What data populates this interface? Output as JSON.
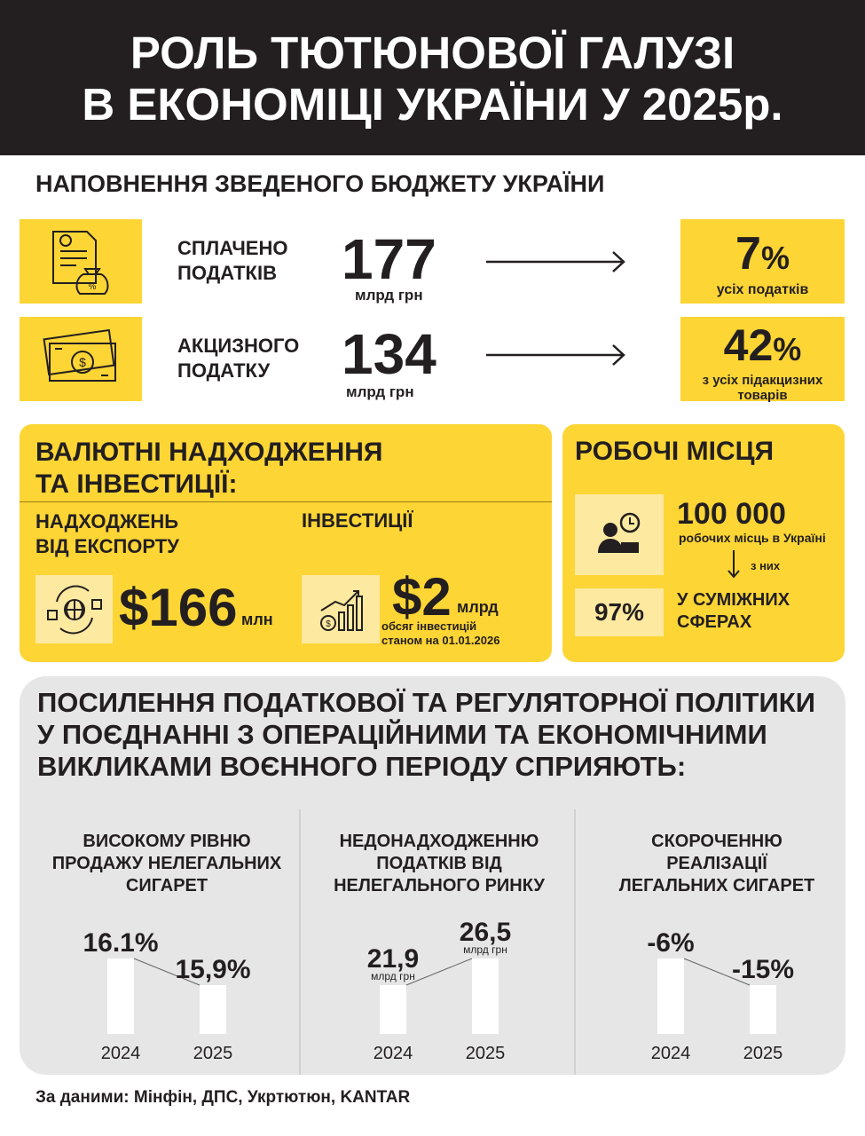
{
  "header": {
    "title_lines": [
      "РОЛЬ ТЮТЮНОВОЇ ГАЛУЗІ",
      "В ЕКОНОМІЦІ УКРАЇНИ У 2025р."
    ]
  },
  "budget": {
    "title": "НАПОВНЕННЯ ЗВЕДЕНОГО БЮДЖЕТУ УКРАЇНИ",
    "rows": [
      {
        "label_lines": [
          "СПЛАЧЕНО",
          "ПОДАТКІВ"
        ],
        "amount": "177",
        "unit": "млрд грн",
        "share": "7",
        "share_unit": "%",
        "share_note_lines": [
          "усіх податків"
        ]
      },
      {
        "label_lines": [
          "АКЦИЗНОГО",
          "ПОДАТКУ"
        ],
        "amount": "134",
        "unit": "млрд грн",
        "share": "42",
        "share_unit": "%",
        "share_note_lines": [
          "з усіх підакцизних",
          "товарів"
        ]
      }
    ]
  },
  "currency": {
    "title_lines": [
      "ВАЛЮТНІ НАДХОДЖЕННЯ",
      "ТА ІНВЕСТИЦІЇ:"
    ],
    "export": {
      "label_lines": [
        "НАДХОДЖЕНЬ",
        "ВІД ЕКСПОРТУ"
      ],
      "amount": "$166",
      "unit": "млн"
    },
    "investments": {
      "label": "ІНВЕСТИЦІЇ",
      "amount": "$2",
      "unit": "млрд",
      "note_lines": [
        "обсяг інвестицій",
        "станом на 01.01.2026"
      ]
    }
  },
  "jobs": {
    "title": "РОБОЧІ МІСЦЯ",
    "count": "100 000",
    "count_note": "робочих місць в Україні",
    "arrow_note": "з них",
    "share": "97%",
    "share_note_lines": [
      "У СУМІЖНИХ",
      "СФЕРАХ"
    ]
  },
  "policy": {
    "title_lines": [
      "ПОСИЛЕННЯ ПОДАТКОВОЇ ТА РЕГУЛЯТОРНОЇ ПОЛІТИКИ",
      "У ПОЄДНАННІ З ОПЕРАЦІЙНИМИ ТА ЕКОНОМІЧНИМИ",
      "ВИКЛИКАМИ ВОЄННОГО ПЕРІОДУ СПРИЯЮТЬ:"
    ],
    "charts": [
      {
        "title_lines": [
          "ВИСОКОМУ РІВНЮ",
          "ПРОДАЖУ НЕЛЕГАЛЬНИХ",
          "СИГАРЕТ"
        ],
        "categories": [
          "2024",
          "2025"
        ],
        "values": [
          16.1,
          15.9
        ],
        "value_labels": [
          "16.1%",
          "15,9%"
        ]
      },
      {
        "title_lines": [
          "НЕДОНАДХОДЖЕННЮ",
          "ПОДАТКІВ ВІД",
          "НЕЛЕГАЛЬНОГО РИНКУ"
        ],
        "categories": [
          "2024",
          "2025"
        ],
        "values": [
          21.9,
          26.5
        ],
        "value_labels": [
          "21,9",
          "26,5"
        ],
        "value_units": [
          "млрд грн",
          "млрд грн"
        ]
      },
      {
        "title_lines": [
          "СКОРОЧЕННЮ",
          "РЕАЛІЗАЦІЇ",
          "ЛЕГАЛЬНИХ СИГАРЕТ"
        ],
        "categories": [
          "2024",
          "2025"
        ],
        "values": [
          -6,
          -15
        ],
        "value_labels": [
          "-6%",
          "-15%"
        ]
      }
    ]
  },
  "source": "За даними: Мінфін, ДПС, Укртютюн, KANTAR"
}
